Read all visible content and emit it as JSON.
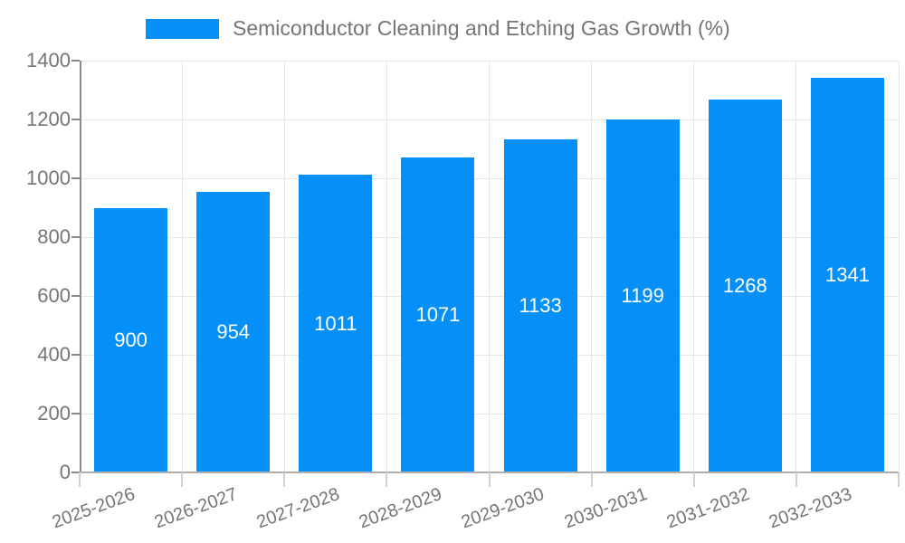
{
  "chart_data": {
    "type": "bar",
    "title": "Semiconductor Cleaning and Etching Gas Growth (%)",
    "categories": [
      "2025-2026",
      "2026-2027",
      "2027-2028",
      "2028-2029",
      "2029-2030",
      "2030-2031",
      "2031-2032",
      "2032-2033"
    ],
    "values": [
      900,
      954,
      1011,
      1071,
      1133,
      1199,
      1268,
      1341
    ],
    "xlabel": "",
    "ylabel": "",
    "ylim": [
      0,
      1400
    ],
    "yticks": [
      0,
      200,
      400,
      600,
      800,
      1000,
      1200,
      1400
    ],
    "grid": true,
    "legend_position": "top",
    "value_label_position": "inside-center",
    "colors": {
      "bar": "#058ff8",
      "value_label": "#ffffff",
      "axis_text": "#757575",
      "gridline": "#e6e6e6",
      "y_axis_line": "#8a8a8a",
      "x_axis_line": "#b0b0b0"
    }
  }
}
